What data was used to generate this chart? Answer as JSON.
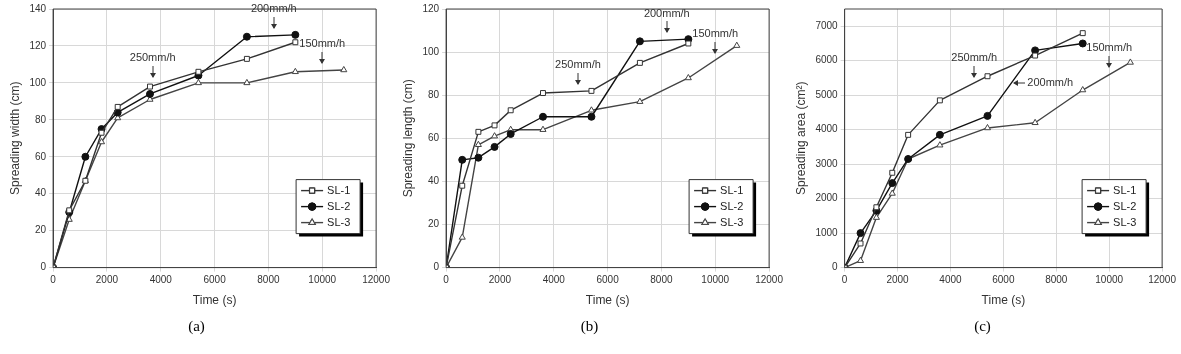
{
  "chart_data": [
    {
      "type": "line",
      "xlabel": "Time (s)",
      "ylabel": "Spreading width (cm)",
      "xlim": [
        0,
        12000
      ],
      "xticks": [
        0,
        2000,
        4000,
        6000,
        8000,
        10000,
        12000
      ],
      "ylim": [
        0,
        140
      ],
      "yticks": [
        0,
        20,
        40,
        60,
        80,
        100,
        120,
        140
      ],
      "grid": true,
      "legend": "bottom right",
      "line_style": "solid",
      "series": [
        {
          "name": "SL-1",
          "color": "#333333",
          "marker": "square",
          "x": [
            0,
            600,
            1200,
            1800,
            2400,
            3600,
            5400,
            7200,
            9000
          ],
          "values": [
            0,
            31,
            47,
            73,
            87,
            98,
            106,
            113,
            122
          ]
        },
        {
          "name": "SL-2",
          "color": "#111111",
          "marker": "circle",
          "x": [
            0,
            600,
            1200,
            1800,
            2400,
            3600,
            5400,
            7200,
            9000
          ],
          "values": [
            0,
            30,
            60,
            75,
            84,
            94,
            104,
            125,
            126
          ]
        },
        {
          "name": "SL-3",
          "color": "#444444",
          "marker": "triangle",
          "x": [
            0,
            600,
            1200,
            1800,
            2400,
            3600,
            5400,
            7200,
            9000,
            10800
          ],
          "values": [
            0,
            26,
            47,
            68,
            81,
            91,
            100,
            100,
            106,
            107
          ]
        }
      ],
      "annotations": [
        {
          "text": "250mm/h",
          "x": 3700,
          "y": 99
        },
        {
          "text": "200mm/h",
          "x": 8200,
          "y": 125.5
        },
        {
          "text": "150mm/h",
          "x": 10000,
          "y": 106.5
        },
        "(a)"
      ]
    },
    {
      "type": "line",
      "xlabel": "Time (s)",
      "ylabel": "Spreading length (cm)",
      "xlim": [
        0,
        12000
      ],
      "xticks": [
        0,
        2000,
        4000,
        6000,
        8000,
        10000,
        12000
      ],
      "ylim": [
        0,
        120
      ],
      "yticks": [
        0,
        20,
        40,
        60,
        80,
        100,
        120
      ],
      "grid": true,
      "legend": "bottom right",
      "line_style": "solid",
      "series": [
        {
          "name": "SL-1",
          "color": "#333333",
          "marker": "square",
          "x": [
            0,
            600,
            1200,
            1800,
            2400,
            3600,
            5400,
            7200,
            9000
          ],
          "values": [
            0,
            38,
            63,
            66,
            73,
            81,
            82,
            95,
            104
          ]
        },
        {
          "name": "SL-2",
          "color": "#111111",
          "marker": "circle",
          "x": [
            0,
            600,
            1200,
            1800,
            2400,
            3600,
            5400,
            7200,
            9000
          ],
          "values": [
            0,
            50,
            51,
            56,
            62,
            70,
            70,
            105,
            106
          ]
        },
        {
          "name": "SL-3",
          "color": "#444444",
          "marker": "triangle",
          "x": [
            0,
            600,
            1200,
            1800,
            2400,
            3600,
            5400,
            7200,
            9000,
            10800
          ],
          "values": [
            0,
            14,
            57,
            61,
            64,
            64,
            73,
            77,
            88,
            103
          ]
        }
      ],
      "annotations": [
        {
          "text": "250mm/h",
          "x": 4900,
          "y": 81.5
        },
        {
          "text": "200mm/h",
          "x": 8200,
          "y": 105.5
        },
        {
          "text": "150mm/h",
          "x": 10000,
          "y": 96
        },
        "(b)"
      ]
    },
    {
      "type": "line",
      "xlabel": "Time (s)",
      "ylabel": "Spreading area (cm²)",
      "xlim": [
        0,
        12000
      ],
      "xticks": [
        0,
        2000,
        4000,
        6000,
        8000,
        10000,
        12000
      ],
      "ylim": [
        0,
        7500
      ],
      "yticks": [
        0,
        1000,
        2000,
        3000,
        4000,
        5000,
        6000,
        7000
      ],
      "grid": true,
      "legend": "bottom right",
      "line_style": "solid",
      "series": [
        {
          "name": "SL-1",
          "color": "#333333",
          "marker": "square",
          "x": [
            0,
            600,
            1200,
            1800,
            2400,
            3600,
            5400,
            7200,
            9000
          ],
          "values": [
            0,
            700,
            1750,
            2750,
            3850,
            4850,
            5550,
            6150,
            6800
          ]
        },
        {
          "name": "SL-2",
          "color": "#111111",
          "marker": "circle",
          "x": [
            0,
            600,
            1200,
            1800,
            2400,
            3600,
            5400,
            7200,
            9000
          ],
          "values": [
            0,
            1000,
            1650,
            2450,
            3150,
            3850,
            4400,
            6300,
            6500
          ]
        },
        {
          "name": "SL-3",
          "color": "#444444",
          "marker": "triangle",
          "x": [
            0,
            600,
            1200,
            1800,
            2400,
            3600,
            5400,
            7200,
            9000,
            10800
          ],
          "values": [
            0,
            200,
            1450,
            2150,
            3150,
            3550,
            4050,
            4200,
            5150,
            5950
          ]
        }
      ],
      "annotations": [
        {
          "text": "250mm/h",
          "x": 4900,
          "y": 5300
        },
        {
          "text": "200mm/h",
          "x": 6300,
          "y": 5350
        },
        {
          "text": "150mm/h",
          "x": 10000,
          "y": 5600
        },
        "(c)"
      ]
    }
  ]
}
